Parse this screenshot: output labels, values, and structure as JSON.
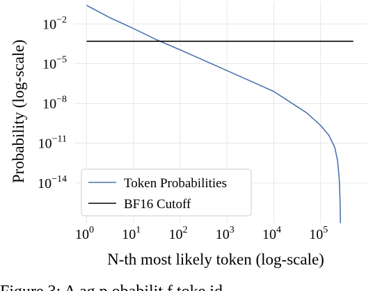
{
  "chart_data": {
    "type": "line",
    "title": "",
    "xlabel": "N-th most likely token (log-scale)",
    "ylabel": "Probability (log-scale)",
    "x_scale": "log",
    "y_scale": "log",
    "xlim": [
      0.55,
      1000000
    ],
    "ylim": [
      1e-17,
      0.5
    ],
    "grid": true,
    "legend_position": "lower-left",
    "x_ticks": [
      {
        "value": 1,
        "base": "10",
        "exp": "0"
      },
      {
        "value": 10,
        "base": "10",
        "exp": "1"
      },
      {
        "value": 100,
        "base": "10",
        "exp": "2"
      },
      {
        "value": 1000,
        "base": "10",
        "exp": "3"
      },
      {
        "value": 10000,
        "base": "10",
        "exp": "4"
      },
      {
        "value": 100000,
        "base": "10",
        "exp": "5"
      }
    ],
    "y_ticks": [
      {
        "value": 0.01,
        "base": "10",
        "exp": "−2"
      },
      {
        "value": 1e-05,
        "base": "10",
        "exp": "−5"
      },
      {
        "value": 1e-08,
        "base": "10",
        "exp": "−8"
      },
      {
        "value": 1e-11,
        "base": "10",
        "exp": "−11"
      },
      {
        "value": 1e-14,
        "base": "10",
        "exp": "−14"
      }
    ],
    "series": [
      {
        "name": "Token Probabilities",
        "color": "#4c72b0",
        "x": [
          1,
          3,
          10,
          30,
          100,
          1000,
          10000,
          50000,
          100000,
          150000,
          200000,
          230000,
          250000,
          260000,
          265000,
          268000
        ],
        "y": [
          0.25,
          0.032,
          0.0045,
          0.00068,
          0.00011,
          3e-06,
          8e-08,
          2e-09,
          2.2e-10,
          4e-11,
          5e-12,
          5e-13,
          2e-14,
          5e-16,
          1e-17,
          1e-18
        ]
      },
      {
        "name": "BF16 Cutoff",
        "color": "#000000",
        "x": [
          1,
          500000
        ],
        "y": [
          0.000488,
          0.000488
        ]
      }
    ]
  },
  "footer_clipped_text": "Figure 3:  A   ag   p obabilit  f  toke  id  "
}
